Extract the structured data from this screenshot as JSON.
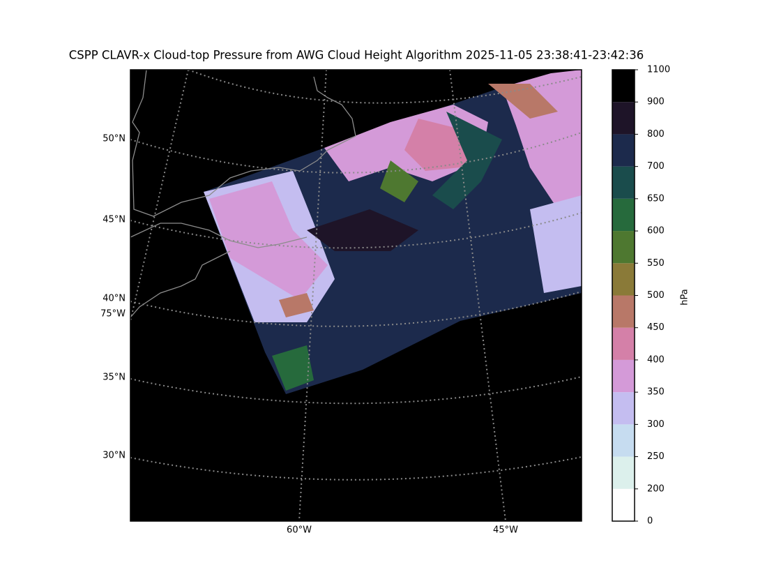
{
  "title": "CSPP CLAVR-x Cloud-top Pressure from AWG Cloud Height Algorithm 2025-11-05 23:38:41-23:42:36",
  "map": {
    "lat_labels": [
      "50°N",
      "45°N",
      "40°N",
      "35°N",
      "30°N"
    ],
    "lon_labels": [
      "75°W",
      "60°W",
      "45°W"
    ]
  },
  "colorbar": {
    "label": "hPa",
    "ticks": [
      0,
      200,
      250,
      300,
      350,
      400,
      450,
      500,
      550,
      600,
      650,
      700,
      800,
      900,
      1100
    ],
    "colors": [
      "#ffffff",
      "#dcf0ec",
      "#c6dcf0",
      "#c4bdf0",
      "#d49ad8",
      "#d480a8",
      "#b87868",
      "#8a7a38",
      "#4e7830",
      "#266a3c",
      "#1a4c4c",
      "#1c2a4c",
      "#1e1428",
      "#000000"
    ]
  }
}
